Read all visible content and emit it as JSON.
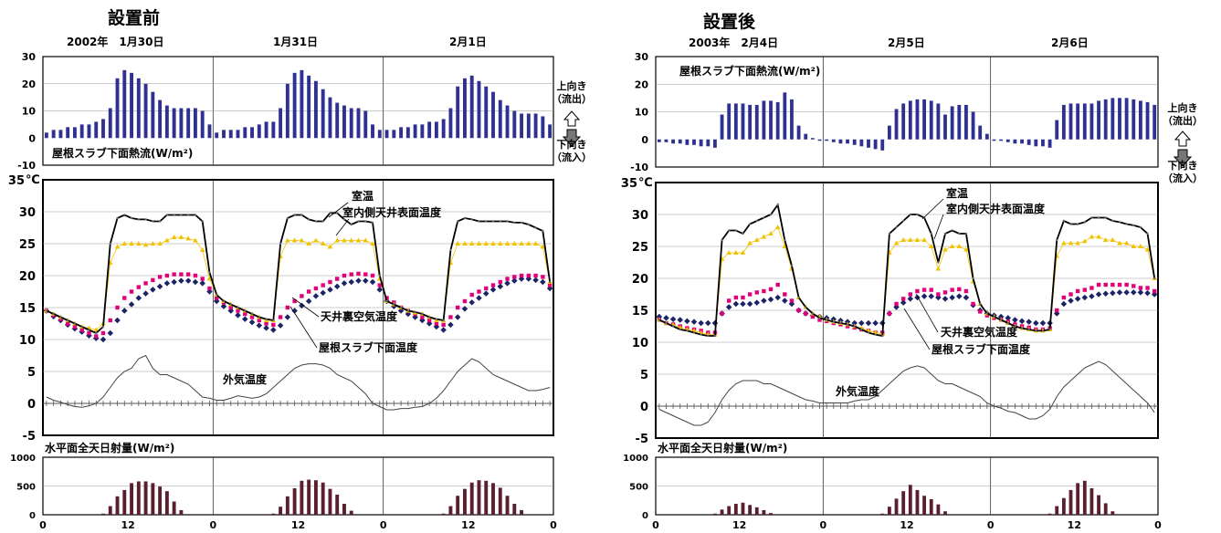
{
  "colors": {
    "heat_bar": "#2e3192",
    "solar_bar": "#5a1e2e",
    "room": "#000000",
    "ceiling": "#f2c200",
    "attic": "#e2007a",
    "slab": "#1b2466",
    "outdoor": "#444444",
    "grid": "#9a9a9a",
    "arrow_up": "#ffffff",
    "arrow_down": "#777777"
  },
  "side_labels": {
    "up": [
      "上向き",
      "（流出）"
    ],
    "down": [
      "下向き",
      "（流入）"
    ]
  },
  "panels": [
    {
      "title": "設置前",
      "days": [
        "2002年　1月30日",
        "1月31日",
        "2月1日"
      ],
      "heat_label": "屋根スラブ下面熱流(W/m²)",
      "solar_label": "水平面全天日射量(W/m²)",
      "temp_unit": "℃",
      "heat_axis": {
        "ticks": [
          30,
          20,
          10,
          0,
          -10
        ],
        "ylim": [
          -10,
          30
        ]
      },
      "temp_axis": {
        "ticks": [
          35,
          30,
          25,
          20,
          15,
          10,
          5,
          0,
          -5
        ],
        "ylim": [
          -5,
          35
        ]
      },
      "solar_axis": {
        "ticks": [
          1000,
          500,
          0
        ],
        "ylim": [
          0,
          1000
        ]
      },
      "x_ticks": [
        "0",
        "12",
        "0",
        "12",
        "0",
        "12",
        "0"
      ],
      "annotations": {
        "room": "室温",
        "ceiling": "室内側天井表面温度",
        "attic": "天井裏空気温度",
        "slab": "屋根スラブ下面温度",
        "outdoor": "外気温度"
      },
      "chart_data": {
        "type": "line",
        "heat_flux": [
          2,
          3,
          3,
          4,
          4,
          5,
          5,
          6,
          7,
          11,
          22,
          25,
          24,
          22,
          20,
          17,
          14,
          12,
          11,
          11,
          11,
          11,
          10,
          5,
          2,
          3,
          3,
          3,
          4,
          4,
          5,
          6,
          6,
          11,
          20,
          24,
          25,
          23,
          21,
          18,
          15,
          13,
          12,
          11,
          11,
          10,
          5,
          3,
          3,
          3,
          4,
          4,
          5,
          5,
          6,
          6,
          7,
          11,
          19,
          22,
          23,
          21,
          19,
          17,
          14,
          12,
          10,
          9,
          9,
          9,
          8,
          5
        ],
        "room_temp": [
          14.5,
          14.0,
          13.5,
          13.0,
          12.5,
          12.0,
          11.5,
          11.0,
          12,
          25,
          29,
          29.5,
          29,
          28.8,
          28.8,
          28.5,
          28.5,
          29.5,
          29.5,
          29.5,
          29.5,
          29.5,
          28.5,
          20.5,
          17,
          16,
          15.5,
          15,
          14.5,
          14,
          13.5,
          13.2,
          13,
          25,
          29,
          29.5,
          29.5,
          28.8,
          28.5,
          28.5,
          29.8,
          29.8,
          28.8,
          28,
          28.5,
          28.5,
          28.3,
          20,
          16,
          15.5,
          15,
          14.5,
          14.3,
          14,
          13.5,
          13.2,
          13,
          24,
          28.5,
          29,
          28.8,
          28.5,
          28.5,
          28.5,
          28.5,
          28.5,
          28.3,
          28.3,
          28,
          27.5,
          27,
          19
        ],
        "ceiling_temp": [
          14.5,
          14.0,
          13.5,
          13.0,
          12.5,
          12.0,
          11.8,
          11.5,
          12.5,
          22,
          24.5,
          25,
          25,
          25,
          24.8,
          25,
          25,
          25.5,
          26,
          26,
          25.8,
          25.5,
          24,
          19.5,
          17,
          16,
          15.5,
          15,
          14.5,
          14,
          13.5,
          13,
          13,
          23,
          25.5,
          25.5,
          25.5,
          25,
          25.5,
          25,
          24.5,
          25.5,
          25.5,
          25.5,
          25.5,
          25.5,
          25,
          19.5,
          16,
          15.5,
          15,
          14.5,
          14.2,
          14,
          13.5,
          13,
          13,
          22,
          25,
          25,
          25,
          25,
          25,
          25,
          25,
          25,
          25,
          25,
          25,
          25,
          24.5,
          19
        ],
        "attic_temp": [
          14.5,
          13.8,
          13.2,
          12.5,
          12,
          11.5,
          11,
          10.5,
          11,
          13,
          15,
          16.5,
          17.5,
          18.2,
          18.8,
          19.3,
          19.8,
          20,
          20.2,
          20.2,
          20.2,
          20,
          19.5,
          18,
          16.5,
          15.8,
          15,
          14.5,
          14,
          13.5,
          13,
          12.5,
          12.3,
          13.5,
          15,
          16,
          16.8,
          17.5,
          18,
          18.5,
          19,
          19.5,
          20,
          20.2,
          20.3,
          20.2,
          20,
          18.5,
          16.5,
          15.8,
          15,
          14.5,
          14,
          13.5,
          13,
          12.5,
          12.3,
          13.5,
          15,
          16,
          17,
          17.5,
          18,
          18.5,
          19,
          19.5,
          19.8,
          20,
          20,
          20,
          19.8,
          18.5
        ],
        "slab_temp": [
          14.5,
          13.6,
          13,
          12.3,
          11.7,
          11.2,
          10.6,
          10.2,
          10,
          11,
          13,
          14.5,
          15.5,
          16.5,
          17.2,
          17.8,
          18.3,
          18.8,
          19,
          19.2,
          19.2,
          19,
          18.8,
          17.5,
          16,
          15.2,
          14.5,
          13.8,
          13.2,
          12.7,
          12.2,
          11.8,
          11.5,
          12.2,
          13.5,
          14.5,
          15.3,
          16,
          16.8,
          17.3,
          17.8,
          18.3,
          18.8,
          19,
          19.2,
          19.2,
          19,
          17.8,
          16,
          15.2,
          14.5,
          14,
          13.5,
          13,
          12.5,
          12,
          11.5,
          12.3,
          13.5,
          14.8,
          15.8,
          16.5,
          17.2,
          17.8,
          18.3,
          18.8,
          19.2,
          19.5,
          19.5,
          19.3,
          19,
          18
        ],
        "outdoor_temp": [
          1,
          0.5,
          0.2,
          -0.2,
          -0.5,
          -0.6,
          -0.4,
          0,
          1,
          2.5,
          4,
          5,
          5.5,
          7,
          7.5,
          5.5,
          4.5,
          4.5,
          4,
          3.5,
          3,
          2,
          1,
          0.8,
          0.5,
          0.5,
          0.8,
          1.2,
          1,
          0.8,
          1,
          1.5,
          2.5,
          3.5,
          4.5,
          5.5,
          6,
          6.2,
          6.2,
          6,
          5.5,
          4.5,
          4,
          3.5,
          2.5,
          1.5,
          0,
          -0.5,
          -1,
          -1,
          -0.8,
          -0.8,
          -0.6,
          -0.5,
          0,
          0.8,
          2,
          3.5,
          5,
          6,
          7,
          6.5,
          5.5,
          4.5,
          4,
          3.5,
          3,
          2.5,
          2,
          2,
          2.2,
          2.5
        ],
        "solar": [
          0,
          0,
          0,
          0,
          0,
          0,
          0,
          0,
          20,
          150,
          320,
          430,
          550,
          580,
          580,
          550,
          490,
          410,
          230,
          80,
          0,
          0,
          0,
          0,
          0,
          0,
          0,
          0,
          0,
          0,
          0,
          0,
          20,
          140,
          320,
          460,
          590,
          610,
          600,
          560,
          450,
          350,
          190,
          70,
          0,
          0,
          0,
          0,
          0,
          0,
          0,
          0,
          0,
          0,
          0,
          0,
          20,
          150,
          330,
          450,
          560,
          600,
          590,
          550,
          470,
          330,
          190,
          80,
          0,
          0,
          0,
          0
        ]
      }
    },
    {
      "title": "設置後",
      "days": [
        "2003年　2月4日",
        "2月5日",
        "2月6日"
      ],
      "heat_label": "屋根スラブ下面熱流(W/m²)",
      "solar_label": "水平面全天日射量(W/m²)",
      "temp_unit": "℃",
      "heat_axis": {
        "ticks": [
          30,
          20,
          10,
          0,
          -10
        ],
        "ylim": [
          -10,
          30
        ]
      },
      "temp_axis": {
        "ticks": [
          35,
          30,
          25,
          20,
          15,
          10,
          5,
          0,
          -5
        ],
        "ylim": [
          -5,
          35
        ]
      },
      "solar_axis": {
        "ticks": [
          1000,
          500,
          0
        ],
        "ylim": [
          0,
          1000
        ]
      },
      "x_ticks": [
        "0",
        "12",
        "0",
        "12",
        "0",
        "12",
        "0"
      ],
      "annotations": {
        "room": "室温",
        "ceiling": "室内側天井表面温度",
        "attic": "天井裏空気温度",
        "slab": "屋根スラブ下面温度",
        "outdoor": "外気温度"
      },
      "chart_data": {
        "type": "line",
        "heat_flux": [
          -1,
          -1,
          -1.5,
          -1.5,
          -2,
          -2,
          -2.5,
          -2.5,
          -3,
          9,
          13,
          13,
          13,
          12.5,
          12.5,
          14,
          14,
          13.5,
          17,
          14.5,
          5,
          2,
          0.5,
          -0.5,
          -0.5,
          -1,
          -1.5,
          -1.5,
          -2,
          -2.5,
          -3,
          -3.5,
          -4,
          5,
          11,
          13,
          14,
          14.5,
          14.5,
          14,
          13,
          9,
          12,
          12.5,
          12.5,
          10,
          5,
          2,
          -0.5,
          -0.5,
          -1,
          -1.5,
          -1.5,
          -2,
          -2.5,
          -2.5,
          -3,
          7,
          12.5,
          13,
          13,
          13,
          13,
          14,
          14.5,
          15,
          15,
          15,
          14.5,
          14,
          13.5,
          12.5
        ],
        "room_temp": [
          13.5,
          13,
          12.5,
          12,
          11.8,
          11.5,
          11.2,
          11,
          11,
          26,
          27.5,
          27.5,
          27,
          28.5,
          29,
          29.5,
          30,
          31.5,
          26,
          22,
          17,
          15.5,
          14.5,
          13.8,
          13.5,
          13.2,
          13,
          12.8,
          12.5,
          12,
          11.5,
          11.2,
          11,
          27,
          28,
          29,
          30,
          30,
          29.5,
          27,
          22.5,
          27,
          27.5,
          27,
          27,
          20,
          16,
          14.5,
          14,
          13.5,
          13,
          12.5,
          12.2,
          12,
          11.8,
          11.8,
          12,
          26,
          29,
          28.5,
          28.5,
          28.8,
          29.5,
          29.5,
          29.5,
          29,
          28.8,
          28.5,
          28.3,
          28,
          27,
          20
        ],
        "ceiling_temp": [
          13.5,
          13,
          12.7,
          12.3,
          12,
          11.8,
          11.5,
          11.2,
          11.2,
          23,
          24,
          24,
          24,
          25.5,
          26,
          26.5,
          27,
          28,
          25,
          21.5,
          17,
          15.5,
          14.5,
          14,
          13.5,
          13.2,
          13,
          12.8,
          12.5,
          12.2,
          11.8,
          11.5,
          11.3,
          24,
          25.5,
          26,
          26,
          26,
          26,
          25,
          21.5,
          24.5,
          25,
          25,
          24.5,
          19.5,
          16,
          14.5,
          14,
          13.5,
          13,
          12.5,
          12.2,
          12,
          11.8,
          11.8,
          12,
          23.5,
          25.5,
          25.5,
          25.5,
          25.8,
          26.5,
          26.5,
          26,
          26,
          25.5,
          25.5,
          25,
          25,
          24.5,
          20
        ],
        "attic_temp": [
          13.5,
          13,
          12.8,
          12.5,
          12.2,
          12,
          11.8,
          11.5,
          11.5,
          14.5,
          16.5,
          17,
          17,
          17.5,
          17.8,
          18,
          18.3,
          19,
          17.5,
          16.5,
          15,
          14.5,
          14,
          13.5,
          13.3,
          13,
          12.8,
          12.5,
          12.3,
          12,
          11.8,
          11.5,
          11.5,
          14.5,
          16,
          16.8,
          17.5,
          18,
          18.2,
          18.2,
          17.5,
          17.8,
          18.2,
          18.3,
          18,
          16,
          14.8,
          14.2,
          13.8,
          13.5,
          13.2,
          12.8,
          12.5,
          12.3,
          12,
          12,
          12.2,
          15,
          17,
          17.5,
          18,
          18.2,
          18.5,
          19,
          19,
          19,
          19,
          19,
          18.8,
          18.5,
          18.5,
          18
        ],
        "slab_temp": [
          14,
          13.8,
          13.6,
          13.5,
          13.3,
          13.2,
          13,
          13,
          13,
          14.5,
          15.5,
          16,
          16,
          16,
          16.2,
          16.5,
          16.7,
          17,
          16.5,
          16,
          15,
          14.5,
          14.2,
          14,
          13.8,
          13.6,
          13.4,
          13.2,
          13,
          13,
          13,
          13,
          13,
          14.5,
          15.5,
          16.2,
          16.8,
          17,
          17.2,
          17.2,
          17,
          16.8,
          17,
          17.2,
          17,
          15.8,
          15,
          14.5,
          14.2,
          14,
          13.8,
          13.5,
          13.3,
          13.2,
          13,
          13,
          13,
          14.5,
          16,
          16.5,
          16.8,
          17,
          17.2,
          17.5,
          17.6,
          17.7,
          17.8,
          17.8,
          17.8,
          17.8,
          17.7,
          17.5
        ],
        "outdoor_temp": [
          -0.5,
          -1,
          -1.5,
          -2,
          -2.5,
          -3,
          -3,
          -2.5,
          -1,
          1,
          2.5,
          3.5,
          4,
          4,
          4,
          3.5,
          3.5,
          3,
          2.5,
          2,
          1.5,
          1,
          0.8,
          0.5,
          0.5,
          0.5,
          0.5,
          0.5,
          0.8,
          1,
          1,
          1.5,
          2.5,
          3.5,
          4.5,
          5.5,
          6,
          6.3,
          6,
          5,
          4,
          3.5,
          3.5,
          3,
          2.5,
          2,
          1.5,
          0.5,
          0,
          -0.3,
          -0.8,
          -1,
          -1.5,
          -2,
          -2,
          -1.5,
          -0.5,
          1.5,
          3,
          4,
          5,
          6,
          6.5,
          7,
          6.5,
          5.5,
          4.5,
          3.5,
          2.5,
          1.5,
          0.5,
          -1
        ],
        "solar": [
          0,
          0,
          0,
          0,
          0,
          0,
          0,
          0,
          20,
          90,
          150,
          190,
          210,
          170,
          130,
          80,
          30,
          0,
          0,
          0,
          0,
          0,
          0,
          0,
          0,
          0,
          0,
          0,
          0,
          0,
          0,
          0,
          20,
          140,
          280,
          410,
          520,
          430,
          330,
          270,
          180,
          60,
          0,
          0,
          0,
          0,
          0,
          0,
          0,
          0,
          0,
          0,
          0,
          0,
          0,
          0,
          20,
          150,
          290,
          430,
          550,
          590,
          460,
          340,
          200,
          60,
          0,
          0,
          0,
          0,
          0,
          0
        ]
      }
    }
  ]
}
